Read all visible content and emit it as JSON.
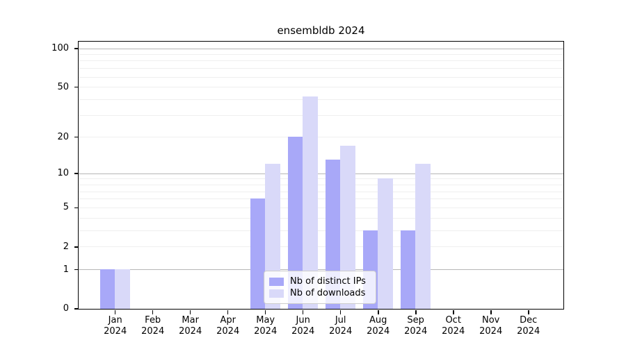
{
  "title": "ensembldb 2024",
  "chart_data": {
    "type": "bar",
    "title": "ensembldb 2024",
    "categories": [
      "Jan 2024",
      "Feb 2024",
      "Mar 2024",
      "Apr 2024",
      "May 2024",
      "Jun 2024",
      "Jul 2024",
      "Aug 2024",
      "Sep 2024",
      "Oct 2024",
      "Nov 2024",
      "Dec 2024"
    ],
    "x": {
      "months": [
        "Jan",
        "Feb",
        "Mar",
        "Apr",
        "May",
        "Jun",
        "Jul",
        "Aug",
        "Sep",
        "Oct",
        "Nov",
        "Dec"
      ],
      "year": "2024"
    },
    "series": [
      {
        "name": "Nb of distinct IPs",
        "color": "#a8a8f8",
        "values": [
          1,
          0,
          0,
          0,
          6,
          20,
          13,
          3,
          3,
          0,
          0,
          0
        ]
      },
      {
        "name": "Nb of downloads",
        "color": "#d9d9f9",
        "values": [
          1,
          0,
          0,
          0,
          12,
          42,
          17,
          9,
          12,
          0,
          0,
          0
        ]
      }
    ],
    "y_axis": {
      "scale": "log1p",
      "tick_values": [
        0,
        1,
        2,
        5,
        10,
        20,
        50,
        100
      ],
      "tick_labels": [
        "0",
        "1",
        "2",
        "5",
        "10",
        "20",
        "50",
        "100"
      ],
      "ylim": [
        0,
        115
      ],
      "decade_gridline_values": [
        1,
        10,
        100
      ],
      "minor_gridline_values": [
        2,
        3,
        4,
        5,
        6,
        7,
        8,
        9,
        20,
        30,
        40,
        50,
        60,
        70,
        80,
        90
      ]
    },
    "grid": true,
    "legend_position": "bottom-center-inside"
  },
  "legend": {
    "entries": [
      {
        "label": "Nb of distinct IPs",
        "color": "#a8a8f8"
      },
      {
        "label": "Nb of downloads",
        "color": "#d9d9f9"
      }
    ]
  },
  "colors": {
    "bar_distinct_ips": "#a8a8f8",
    "bar_downloads": "#d9d9f9",
    "grid_decade": "#b6b6b6",
    "grid_minor": "#efefef",
    "axis": "#000000",
    "legend_border": "#cccccc",
    "background": "#ffffff"
  }
}
